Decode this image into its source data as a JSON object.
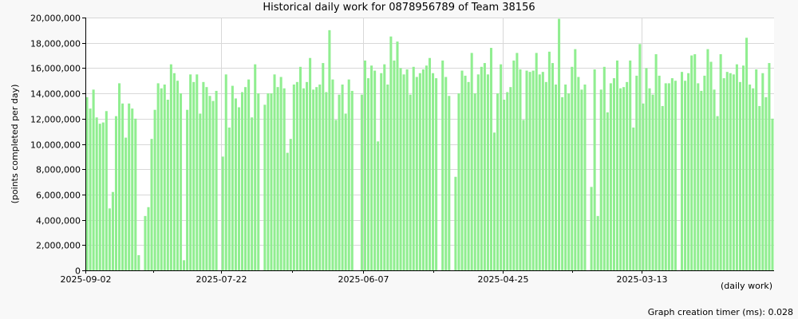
{
  "footer": {
    "timer_text": "Graph creation timer (ms): 0.028"
  },
  "chart_data": {
    "type": "bar",
    "title": "Historical daily work for 0878956789 of Team 38156",
    "xlabel": "(daily work)",
    "ylabel": "(points completed per day)",
    "ylim": [
      0,
      20000000
    ],
    "yticks": [
      0,
      2000000,
      4000000,
      6000000,
      8000000,
      10000000,
      12000000,
      14000000,
      16000000,
      18000000,
      20000000
    ],
    "ytick_labels": [
      "0",
      "2,000,000",
      "4,000,000",
      "6,000,000",
      "8,000,000",
      "10,000,000",
      "12,000,000",
      "14,000,000",
      "16,000,000",
      "18,000,000",
      "20,000,000"
    ],
    "xtick_labels": [
      {
        "label": "2025-09-02",
        "index": 0
      },
      {
        "label": "2025-07-22",
        "index": 42
      },
      {
        "label": "2025-06-07",
        "index": 86
      },
      {
        "label": "2025-04-25",
        "index": 129
      },
      {
        "label": "2025-03-13",
        "index": 172
      }
    ],
    "grid": true,
    "bar_color": "#90ee90",
    "values": [
      13700000,
      12800000,
      14300000,
      12100000,
      11600000,
      11700000,
      12600000,
      4900000,
      6200000,
      12200000,
      14800000,
      13200000,
      10500000,
      13200000,
      12800000,
      12000000,
      1200000,
      0,
      4300000,
      5000000,
      10400000,
      12700000,
      14800000,
      14400000,
      14700000,
      13500000,
      16300000,
      15600000,
      15000000,
      14000000,
      800000,
      12700000,
      15500000,
      14900000,
      15500000,
      12400000,
      14900000,
      14500000,
      13800000,
      13400000,
      14200000,
      0,
      9000000,
      15500000,
      11300000,
      14600000,
      13600000,
      12900000,
      14100000,
      14500000,
      15100000,
      12100000,
      16300000,
      14000000,
      0,
      13100000,
      14000000,
      14000000,
      15500000,
      14500000,
      15300000,
      14400000,
      9300000,
      10400000,
      14700000,
      14900000,
      16100000,
      14400000,
      14900000,
      16800000,
      14300000,
      14500000,
      14700000,
      16400000,
      14100000,
      19000000,
      15100000,
      11900000,
      13900000,
      14700000,
      12400000,
      15100000,
      14200000,
      0,
      0,
      13900000,
      16600000,
      15200000,
      16200000,
      15800000,
      10200000,
      15600000,
      16300000,
      14700000,
      18500000,
      16600000,
      18100000,
      16000000,
      15500000,
      15900000,
      13900000,
      16100000,
      15300000,
      15600000,
      15900000,
      16200000,
      16800000,
      15600000,
      15200000,
      0,
      16600000,
      15300000,
      13800000,
      0,
      7400000,
      14000000,
      15800000,
      15400000,
      14900000,
      17200000,
      14000000,
      15500000,
      16100000,
      16400000,
      15500000,
      17600000,
      10900000,
      14000000,
      16300000,
      13500000,
      14100000,
      14500000,
      16600000,
      17200000,
      15900000,
      11900000,
      15800000,
      15700000,
      15800000,
      17200000,
      15500000,
      15700000,
      14900000,
      17300000,
      16400000,
      14700000,
      19900000,
      13700000,
      14700000,
      14000000,
      16100000,
      17500000,
      15300000,
      14300000,
      14700000,
      0,
      6600000,
      15900000,
      4300000,
      14300000,
      16100000,
      12500000,
      14800000,
      15200000,
      16600000,
      14400000,
      14500000,
      14900000,
      16600000,
      11300000,
      15400000,
      17900000,
      13200000,
      16000000,
      14400000,
      13900000,
      17100000,
      15400000,
      13000000,
      14800000,
      14800000,
      15200000,
      15000000,
      0,
      15700000,
      15000000,
      15600000,
      17000000,
      17100000,
      14800000,
      14200000,
      15400000,
      17500000,
      16500000,
      14300000,
      12200000,
      17100000,
      15200000,
      15700000,
      15600000,
      15500000,
      16300000,
      14900000,
      16200000,
      18400000,
      14700000,
      14400000,
      15900000,
      13000000,
      15600000,
      13700000,
      16400000,
      12000000
    ]
  }
}
